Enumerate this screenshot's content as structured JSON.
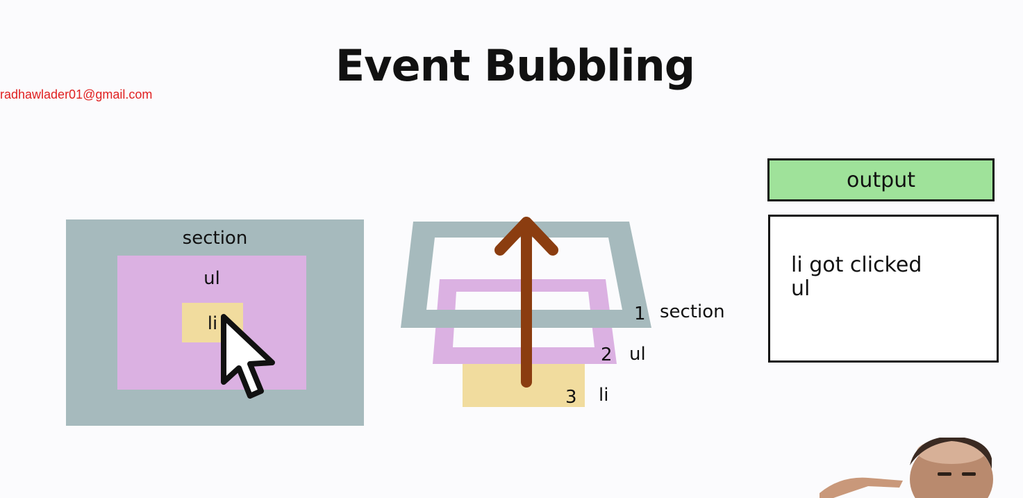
{
  "title": "Event Bubbling",
  "watermark": "radhawlader01@gmail.com",
  "left_diagram": {
    "section_label": "section",
    "ul_label": "ul",
    "li_label": "li"
  },
  "stack_diagram": {
    "layers": [
      {
        "number": "1",
        "label": "section"
      },
      {
        "number": "2",
        "label": "ul"
      },
      {
        "number": "3",
        "label": "li"
      }
    ]
  },
  "output": {
    "header": "output",
    "lines": [
      "li got clicked",
      "ul"
    ]
  },
  "colors": {
    "section": "#a6babd",
    "ul": "#dbb1e2",
    "li": "#f1dc9e",
    "arrow": "#8b3d10",
    "output_header": "#9fe29a"
  },
  "icons": [
    "mouse-cursor-icon",
    "up-arrow-icon"
  ]
}
